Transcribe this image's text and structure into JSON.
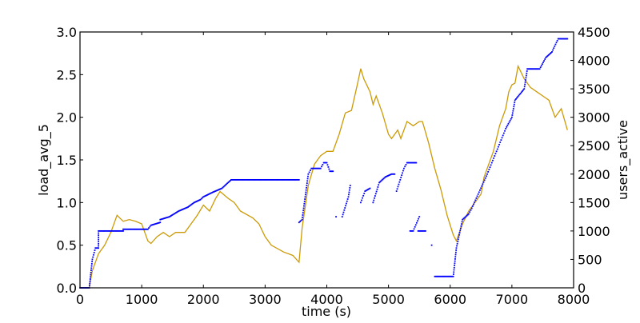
{
  "chart_data": {
    "type": "line",
    "xlabel": "time (s)",
    "ylabel": "load_avg_5",
    "y2label": "users_active",
    "xlim": [
      0,
      8000
    ],
    "ylim": [
      0,
      3.0
    ],
    "y2lim": [
      0,
      4500
    ],
    "xticks": [
      "0",
      "1000",
      "2000",
      "3000",
      "4000",
      "5000",
      "6000",
      "7000",
      "8000"
    ],
    "yticks": [
      "0.0",
      "0.5",
      "1.0",
      "1.5",
      "2.0",
      "2.5",
      "3.0"
    ],
    "y2ticks": [
      "0",
      "500",
      "1000",
      "1500",
      "2000",
      "2500",
      "3000",
      "3500",
      "4000",
      "4500"
    ],
    "grid": false,
    "series": [
      {
        "name": "load_avg_5",
        "axis": "left",
        "style": "line",
        "color": "#cc9a06",
        "points": [
          [
            0,
            0
          ],
          [
            150,
            0
          ],
          [
            200,
            0.2
          ],
          [
            300,
            0.4
          ],
          [
            400,
            0.5
          ],
          [
            500,
            0.65
          ],
          [
            600,
            0.85
          ],
          [
            700,
            0.78
          ],
          [
            800,
            0.8
          ],
          [
            900,
            0.78
          ],
          [
            1000,
            0.75
          ],
          [
            1050,
            0.65
          ],
          [
            1100,
            0.55
          ],
          [
            1150,
            0.52
          ],
          [
            1250,
            0.6
          ],
          [
            1350,
            0.65
          ],
          [
            1450,
            0.6
          ],
          [
            1550,
            0.65
          ],
          [
            1700,
            0.65
          ],
          [
            1800,
            0.75
          ],
          [
            1900,
            0.85
          ],
          [
            2000,
            0.97
          ],
          [
            2100,
            0.9
          ],
          [
            2200,
            1.05
          ],
          [
            2270,
            1.13
          ],
          [
            2400,
            1.05
          ],
          [
            2500,
            1.0
          ],
          [
            2600,
            0.9
          ],
          [
            2800,
            0.82
          ],
          [
            2900,
            0.75
          ],
          [
            3000,
            0.6
          ],
          [
            3100,
            0.5
          ],
          [
            3300,
            0.42
          ],
          [
            3450,
            0.38
          ],
          [
            3550,
            0.3
          ],
          [
            3600,
            0.7
          ],
          [
            3700,
            1.2
          ],
          [
            3800,
            1.45
          ],
          [
            3900,
            1.55
          ],
          [
            4000,
            1.6
          ],
          [
            4100,
            1.6
          ],
          [
            4200,
            1.8
          ],
          [
            4300,
            2.05
          ],
          [
            4400,
            2.08
          ],
          [
            4500,
            2.4
          ],
          [
            4550,
            2.57
          ],
          [
            4600,
            2.45
          ],
          [
            4700,
            2.3
          ],
          [
            4750,
            2.15
          ],
          [
            4800,
            2.25
          ],
          [
            4900,
            2.05
          ],
          [
            5000,
            1.8
          ],
          [
            5050,
            1.75
          ],
          [
            5150,
            1.85
          ],
          [
            5200,
            1.75
          ],
          [
            5300,
            1.95
          ],
          [
            5400,
            1.9
          ],
          [
            5500,
            1.95
          ],
          [
            5550,
            1.95
          ],
          [
            5650,
            1.7
          ],
          [
            5750,
            1.4
          ],
          [
            5850,
            1.15
          ],
          [
            5950,
            0.85
          ],
          [
            6050,
            0.62
          ],
          [
            6100,
            0.55
          ],
          [
            6200,
            0.75
          ],
          [
            6300,
            0.9
          ],
          [
            6400,
            1.0
          ],
          [
            6500,
            1.1
          ],
          [
            6550,
            1.3
          ],
          [
            6600,
            1.4
          ],
          [
            6700,
            1.6
          ],
          [
            6800,
            1.9
          ],
          [
            6900,
            2.1
          ],
          [
            6950,
            2.3
          ],
          [
            7000,
            2.38
          ],
          [
            7050,
            2.4
          ],
          [
            7100,
            2.6
          ],
          [
            7200,
            2.45
          ],
          [
            7300,
            2.35
          ],
          [
            7400,
            2.3
          ],
          [
            7500,
            2.25
          ],
          [
            7600,
            2.2
          ],
          [
            7700,
            2.0
          ],
          [
            7800,
            2.1
          ],
          [
            7900,
            1.85
          ]
        ]
      },
      {
        "name": "users_active",
        "axis": "right",
        "style": "dots",
        "color": "#0000ff",
        "segments": [
          [
            [
              0,
              0
            ],
            [
              150,
              0
            ],
            [
              200,
              500
            ],
            [
              250,
              700
            ],
            [
              300,
              700
            ],
            [
              300,
              1000
            ],
            [
              700,
              1000
            ],
            [
              700,
              1030
            ],
            [
              1100,
              1030
            ],
            [
              1150,
              1100
            ],
            [
              1300,
              1150
            ],
            [
              1300,
              1200
            ],
            [
              1450,
              1250
            ],
            [
              1600,
              1350
            ],
            [
              1750,
              1420
            ],
            [
              1850,
              1500
            ],
            [
              1950,
              1550
            ],
            [
              2000,
              1600
            ],
            [
              2150,
              1680
            ],
            [
              2300,
              1750
            ],
            [
              2450,
              1900
            ],
            [
              3550,
              1900
            ]
          ],
          [
            [
              3550,
              1150
            ],
            [
              3600,
              1200
            ],
            [
              3700,
              2000
            ],
            [
              3750,
              2100
            ],
            [
              3900,
              2100
            ],
            [
              3950,
              2200
            ],
            [
              4000,
              2200
            ],
            [
              4050,
              2050
            ],
            [
              4100,
              2050
            ]
          ],
          [
            [
              4150,
              1250
            ]
          ],
          [
            [
              4250,
              1250
            ],
            [
              4350,
              1600
            ],
            [
              4380,
              1800
            ]
          ],
          [
            [
              4550,
              1500
            ],
            [
              4620,
              1700
            ],
            [
              4700,
              1750
            ]
          ],
          [
            [
              4750,
              1500
            ],
            [
              4850,
              1850
            ],
            [
              4950,
              1950
            ],
            [
              5050,
              2000
            ],
            [
              5100,
              2000
            ]
          ],
          [
            [
              5130,
              1700
            ],
            [
              5250,
              2100
            ],
            [
              5300,
              2200
            ],
            [
              5450,
              2200
            ]
          ],
          [
            [
              5350,
              1000
            ],
            [
              5400,
              1000
            ],
            [
              5500,
              1250
            ]
          ],
          [
            [
              5480,
              1000
            ],
            [
              5600,
              1000
            ]
          ],
          [
            [
              5700,
              750
            ]
          ],
          [
            [
              5750,
              200
            ],
            [
              6050,
              200
            ],
            [
              6100,
              700
            ],
            [
              6200,
              1200
            ],
            [
              6300,
              1300
            ],
            [
              6350,
              1400
            ],
            [
              6600,
              2000
            ],
            [
              6900,
              2800
            ],
            [
              7000,
              3000
            ],
            [
              7050,
              3300
            ],
            [
              7200,
              3500
            ],
            [
              7250,
              3850
            ],
            [
              7450,
              3850
            ],
            [
              7550,
              4050
            ],
            [
              7650,
              4150
            ],
            [
              7750,
              4380
            ],
            [
              7900,
              4380
            ]
          ]
        ]
      }
    ]
  }
}
